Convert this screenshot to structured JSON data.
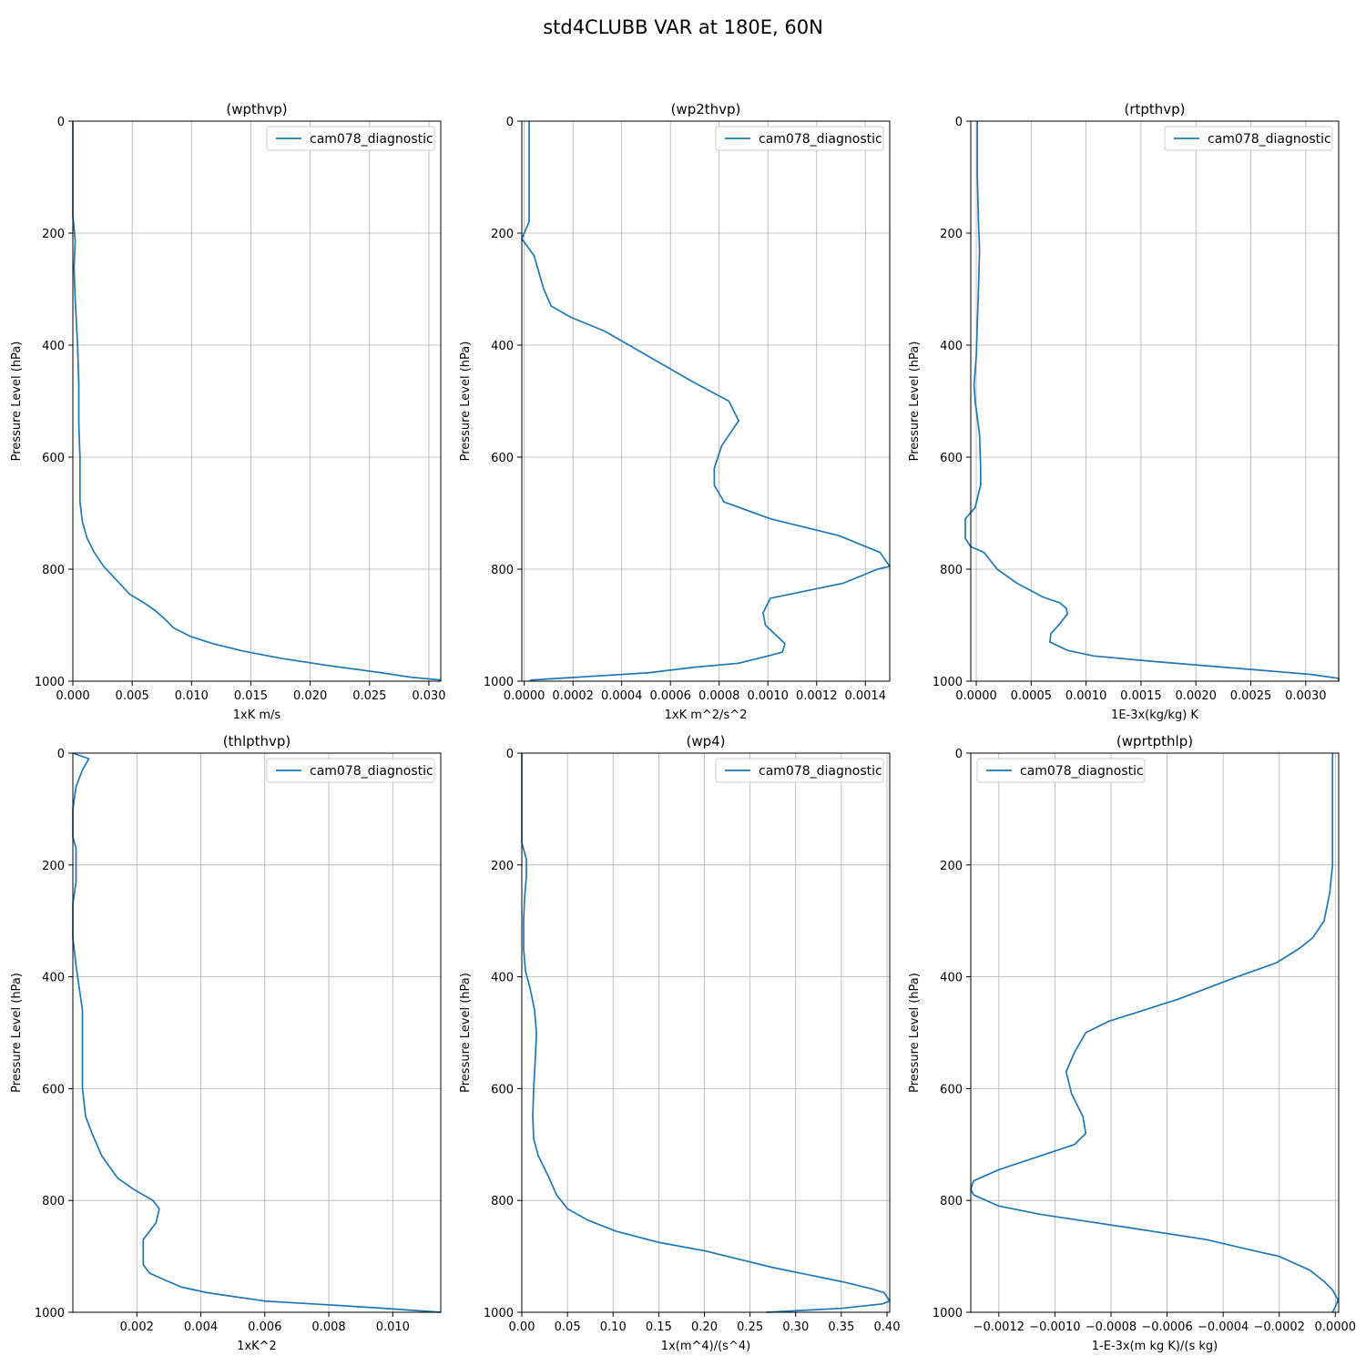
{
  "figure": {
    "title": "std4CLUBB VAR at 180E, 60N"
  },
  "chart_data": [
    {
      "type": "line",
      "title": "(wpthvp)",
      "xlabel": "1xK m/s",
      "ylabel": "Pressure Level (hPa)",
      "xlim": [
        0,
        0.031
      ],
      "ylim": [
        1000,
        0
      ],
      "y_inverted": true,
      "xticks": [
        0,
        0.005,
        0.01,
        0.015,
        0.02,
        0.025,
        0.03
      ],
      "xtick_labels": [
        "0.000",
        "0.005",
        "0.010",
        "0.015",
        "0.020",
        "0.025",
        "0.030"
      ],
      "yticks": [
        0,
        200,
        400,
        600,
        800,
        1000
      ],
      "ytick_labels": [
        "0",
        "200",
        "400",
        "600",
        "800",
        "1000"
      ],
      "grid": true,
      "legend_position": "upper right",
      "series": [
        {
          "name": "cam078_diagnostic",
          "color": "#1f77b4",
          "x": [
            0.0,
            0.0,
            0.0001,
            0.0002,
            0.0001,
            0.0002,
            0.0004,
            0.0005,
            0.0005,
            0.0006,
            0.0006,
            0.0008,
            0.0012,
            0.0018,
            0.0026,
            0.0037,
            0.0048,
            0.006,
            0.007,
            0.0078,
            0.0085,
            0.0099,
            0.0118,
            0.0143,
            0.0175,
            0.0215,
            0.026,
            0.0285,
            0.031
          ],
          "y": [
            0,
            170,
            190,
            215,
            260,
            320,
            400,
            470,
            540,
            600,
            680,
            715,
            745,
            770,
            795,
            820,
            845,
            860,
            875,
            890,
            905,
            920,
            933,
            946,
            959,
            972,
            985,
            993,
            998
          ]
        }
      ]
    },
    {
      "type": "line",
      "title": "(wp2thvp)",
      "xlabel": "1xK m^2/s^2",
      "ylabel": "Pressure Level (hPa)",
      "xlim": [
        -1e-05,
        0.0015
      ],
      "ylim": [
        1000,
        0
      ],
      "y_inverted": true,
      "xticks": [
        0,
        0.0002,
        0.0004,
        0.0006,
        0.0008,
        0.001,
        0.0012,
        0.0014
      ],
      "xtick_labels": [
        "0.0000",
        "0.0002",
        "0.0004",
        "0.0006",
        "0.0008",
        "0.0010",
        "0.0012",
        "0.0014"
      ],
      "yticks": [
        0,
        200,
        400,
        600,
        800,
        1000
      ],
      "ytick_labels": [
        "0",
        "200",
        "400",
        "600",
        "800",
        "1000"
      ],
      "grid": true,
      "legend_position": "upper right",
      "series": [
        {
          "name": "cam078_diagnostic",
          "color": "#1f77b4",
          "x": [
            2e-05,
            2e-05,
            2e-05,
            -1e-05,
            4e-05,
            8e-05,
            0.00011,
            0.00019,
            0.00033,
            0.00069,
            0.00084,
            0.00088,
            0.00081,
            0.00078,
            0.00078,
            0.00082,
            0.00101,
            0.00129,
            0.00146,
            0.0015,
            0.00145,
            0.00131,
            0.00101,
            0.00098,
            0.00099,
            0.00107,
            0.00106,
            0.001,
            0.00088,
            0.0007,
            0.00051,
            3e-05,
            2e-05
          ],
          "y": [
            0,
            100,
            180,
            210,
            240,
            300,
            330,
            350,
            375,
            465,
            500,
            535,
            580,
            620,
            650,
            680,
            710,
            740,
            770,
            795,
            800,
            825,
            852,
            878,
            900,
            933,
            948,
            955,
            968,
            975,
            985,
            998,
            1000
          ]
        }
      ]
    },
    {
      "type": "line",
      "title": "(rtpthvp)",
      "xlabel": "1E-3x(kg/kg) K",
      "ylabel": "Pressure Level (hPa)",
      "xlim": [
        -5e-05,
        0.0033
      ],
      "ylim": [
        1000,
        0
      ],
      "y_inverted": true,
      "xticks": [
        0,
        0.0005,
        0.001,
        0.0015,
        0.002,
        0.0025,
        0.003
      ],
      "xtick_labels": [
        "0.0000",
        "0.0005",
        "0.0010",
        "0.0015",
        "0.0020",
        "0.0025",
        "0.0030"
      ],
      "yticks": [
        0,
        200,
        400,
        600,
        800,
        1000
      ],
      "ytick_labels": [
        "0",
        "200",
        "400",
        "600",
        "800",
        "1000"
      ],
      "grid": true,
      "legend_position": "upper right",
      "series": [
        {
          "name": "cam078_diagnostic",
          "color": "#1f77b4",
          "x": [
            1e-05,
            1e-05,
            2e-05,
            3e-05,
            2e-05,
            1e-05,
            0.0,
            -2e-05,
            -1e-05,
            3e-05,
            4e-05,
            4e-05,
            -1e-05,
            -0.0001,
            -0.0001,
            -5e-05,
            7e-05,
            0.00019,
            0.00037,
            0.00061,
            0.00076,
            0.00082,
            0.00083,
            0.00075,
            0.00068,
            0.00067,
            0.00083,
            0.00107,
            0.00163,
            0.00225,
            0.00305,
            0.0033,
            0.0033
          ],
          "y": [
            0,
            100,
            180,
            230,
            300,
            360,
            420,
            470,
            500,
            560,
            620,
            650,
            690,
            710,
            745,
            760,
            770,
            800,
            825,
            850,
            860,
            870,
            880,
            900,
            915,
            930,
            945,
            955,
            965,
            975,
            988,
            995,
            1000
          ]
        }
      ]
    },
    {
      "type": "line",
      "title": "(thlpthvp)",
      "xlabel": "1xK^2",
      "ylabel": "Pressure Level (hPa)",
      "xlim": [
        0,
        0.0115
      ],
      "ylim": [
        1000,
        0
      ],
      "y_inverted": true,
      "xticks": [
        0.002,
        0.004,
        0.006,
        0.008,
        0.01
      ],
      "xtick_labels": [
        "0.002",
        "0.004",
        "0.006",
        "0.008",
        "0.010"
      ],
      "yticks": [
        0,
        200,
        400,
        600,
        800,
        1000
      ],
      "ytick_labels": [
        "0",
        "200",
        "400",
        "600",
        "800",
        "1000"
      ],
      "grid": true,
      "legend_position": "upper right",
      "series": [
        {
          "name": "cam078_diagnostic",
          "color": "#1f77b4",
          "x": [
            0.0,
            0.0005,
            0.0003,
            0.0001,
            0.0,
            0.0,
            0.0001,
            0.0001,
            0.0001,
            0.0,
            0.0,
            0.0001,
            0.0003,
            0.0003,
            0.0003,
            0.0004,
            0.0006,
            0.0009,
            0.0014,
            0.0019,
            0.0025,
            0.0027,
            0.0026,
            0.0022,
            0.0022,
            0.0024,
            0.0029,
            0.0034,
            0.0042,
            0.006,
            0.0075,
            0.0095,
            0.0115
          ],
          "y": [
            0,
            10,
            30,
            60,
            100,
            150,
            170,
            190,
            230,
            270,
            330,
            380,
            460,
            500,
            600,
            650,
            680,
            720,
            760,
            780,
            800,
            815,
            840,
            870,
            915,
            930,
            943,
            955,
            965,
            980,
            985,
            992,
            1000
          ]
        }
      ]
    },
    {
      "type": "line",
      "title": "(wp4)",
      "xlabel": "1x(m^4)/(s^4)",
      "ylabel": "Pressure Level (hPa)",
      "xlim": [
        0,
        0.403
      ],
      "ylim": [
        1000,
        0
      ],
      "y_inverted": true,
      "xticks": [
        0,
        0.05,
        0.1,
        0.15,
        0.2,
        0.25,
        0.3,
        0.35,
        0.4
      ],
      "xtick_labels": [
        "0.00",
        "0.05",
        "0.10",
        "0.15",
        "0.20",
        "0.25",
        "0.30",
        "0.35",
        "0.40"
      ],
      "yticks": [
        0,
        200,
        400,
        600,
        800,
        1000
      ],
      "ytick_labels": [
        "0",
        "200",
        "400",
        "600",
        "800",
        "1000"
      ],
      "grid": true,
      "legend_position": "upper right",
      "series": [
        {
          "name": "cam078_diagnostic",
          "color": "#1f77b4",
          "x": [
            0.0,
            0.0,
            0.005,
            0.005,
            0.003,
            0.002,
            0.002,
            0.004,
            0.009,
            0.014,
            0.016,
            0.015,
            0.013,
            0.012,
            0.013,
            0.018,
            0.024,
            0.03,
            0.038,
            0.05,
            0.072,
            0.103,
            0.15,
            0.2,
            0.275,
            0.35,
            0.383,
            0.397,
            0.403,
            0.395,
            0.35,
            0.268
          ],
          "y": [
            0,
            160,
            190,
            220,
            260,
            300,
            350,
            390,
            420,
            460,
            500,
            540,
            600,
            650,
            690,
            720,
            740,
            760,
            790,
            815,
            835,
            855,
            875,
            890,
            920,
            945,
            958,
            965,
            980,
            985,
            993,
            1000
          ]
        }
      ]
    },
    {
      "type": "line",
      "title": "(wprtpthlp)",
      "xlabel": "1-E-3x(m kg K)/(s kg)",
      "ylabel": "Pressure Level (hPa)",
      "xlim": [
        -0.0013,
        1.2e-05
      ],
      "ylim": [
        1000,
        0
      ],
      "y_inverted": true,
      "xticks": [
        -0.0012,
        -0.001,
        -0.0008,
        -0.0006,
        -0.0004,
        -0.0002,
        0
      ],
      "xtick_labels": [
        "−0.0012",
        "−0.0010",
        "−0.0008",
        "−0.0006",
        "−0.0004",
        "−0.0002",
        "0.0000"
      ],
      "yticks": [
        0,
        200,
        400,
        600,
        800,
        1000
      ],
      "ytick_labels": [
        "0",
        "200",
        "400",
        "600",
        "800",
        "1000"
      ],
      "grid": true,
      "legend_position": "upper left",
      "series": [
        {
          "name": "cam078_diagnostic",
          "color": "#1f77b4",
          "x": [
            -1e-05,
            -1e-05,
            -1e-05,
            -2e-05,
            -4e-05,
            -8e-05,
            -0.00013,
            -0.00021,
            -0.00035,
            -0.00056,
            -0.00081,
            -0.00089,
            -0.00093,
            -0.00096,
            -0.00094,
            -0.0009,
            -0.00089,
            -0.00093,
            -0.00105,
            -0.0012,
            -0.00129,
            -0.0013,
            -0.00129,
            -0.0012,
            -0.00105,
            -0.00072,
            -0.00046,
            -0.00029,
            -0.0002,
            -9e-05,
            -4e-05,
            -1e-05,
            1e-05,
            0.0,
            -1e-05
          ],
          "y": [
            0,
            100,
            200,
            250,
            300,
            330,
            350,
            375,
            400,
            440,
            480,
            500,
            535,
            570,
            610,
            650,
            680,
            700,
            720,
            745,
            765,
            780,
            790,
            810,
            825,
            850,
            870,
            890,
            900,
            925,
            945,
            960,
            978,
            990,
            1000
          ]
        }
      ]
    }
  ]
}
